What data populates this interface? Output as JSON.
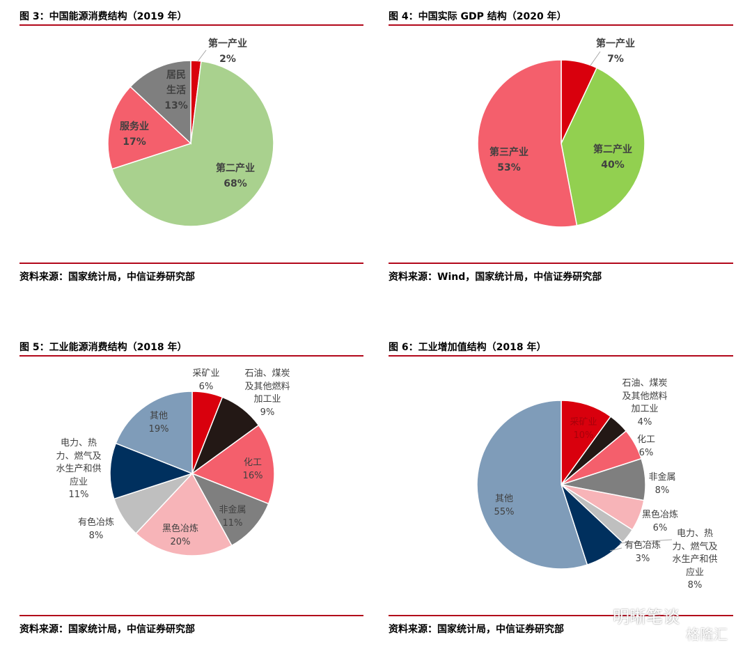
{
  "panels": [
    {
      "title": "图 3：中国能源消费结构（2019 年）",
      "source": "资料来源：国家统计局，中信证券研究部"
    },
    {
      "title": "图 4：中国实际 GDP 结构（2020 年）",
      "source": "资料来源：Wind，国家统计局，中信证券研究部"
    },
    {
      "title": "图 5：工业能源消费结构（2018 年）",
      "source": "资料来源：国家统计局，中信证券研究部"
    },
    {
      "title": "图 6：工业增加值结构（2018 年）",
      "source": "资料来源：国家统计局，中信证券研究部"
    }
  ],
  "watermark": {
    "text": "明晰笔谈",
    "brand": "格隆汇"
  },
  "chart_data": [
    {
      "type": "pie",
      "title": "图 3：中国能源消费结构（2019 年）",
      "categories": [
        "第一产业",
        "第二产业",
        "服务业",
        "居民\n生活"
      ],
      "values": [
        2,
        68,
        17,
        13
      ],
      "value_labels": [
        "2%",
        "68%",
        "17%",
        "13%"
      ],
      "colors": [
        "#d9000d",
        "#a9d18e",
        "#f45f6c",
        "#7f7f7f"
      ]
    },
    {
      "type": "pie",
      "title": "图 4：中国实际 GDP 结构（2020 年）",
      "categories": [
        "第一产业",
        "第二产业",
        "第三产业"
      ],
      "values": [
        7,
        40,
        53
      ],
      "value_labels": [
        "7%",
        "40%",
        "53%"
      ],
      "colors": [
        "#d9000d",
        "#92d050",
        "#f45f6c"
      ]
    },
    {
      "type": "pie",
      "title": "图 5：工业能源消费结构（2018 年）",
      "categories": [
        "采矿业",
        "石油、煤炭\n及其他燃料\n加工业",
        "化工",
        "非金属",
        "黑色冶炼",
        "有色冶炼",
        "电力、热\n力、燃气及\n水生产和供\n应业",
        "其他"
      ],
      "values": [
        6,
        9,
        16,
        11,
        20,
        8,
        11,
        19
      ],
      "value_labels": [
        "6%",
        "9%",
        "16%",
        "11%",
        "20%",
        "8%",
        "11%",
        "19%"
      ],
      "colors": [
        "#d9000d",
        "#231815",
        "#f45f6c",
        "#7f7f7f",
        "#f7b4b8",
        "#bfbfbf",
        "#00305e",
        "#7f9cb9"
      ]
    },
    {
      "type": "pie",
      "title": "图 6：工业增加值结构（2018 年）",
      "categories": [
        "采矿业",
        "石油、煤炭\n及其他燃料\n加工业",
        "化工",
        "非金属",
        "黑色冶炼",
        "有色冶炼",
        "电力、热\n力、燃气及\n水生产和供\n应业",
        "其他"
      ],
      "values": [
        10,
        4,
        6,
        8,
        6,
        3,
        8,
        55
      ],
      "value_labels": [
        "10%",
        "4%",
        "6%",
        "8%",
        "6%",
        "3%",
        "8%",
        "55%"
      ],
      "colors": [
        "#d9000d",
        "#231815",
        "#f45f6c",
        "#7f7f7f",
        "#f7b4b8",
        "#bfbfbf",
        "#00305e",
        "#7f9cb9"
      ]
    }
  ]
}
